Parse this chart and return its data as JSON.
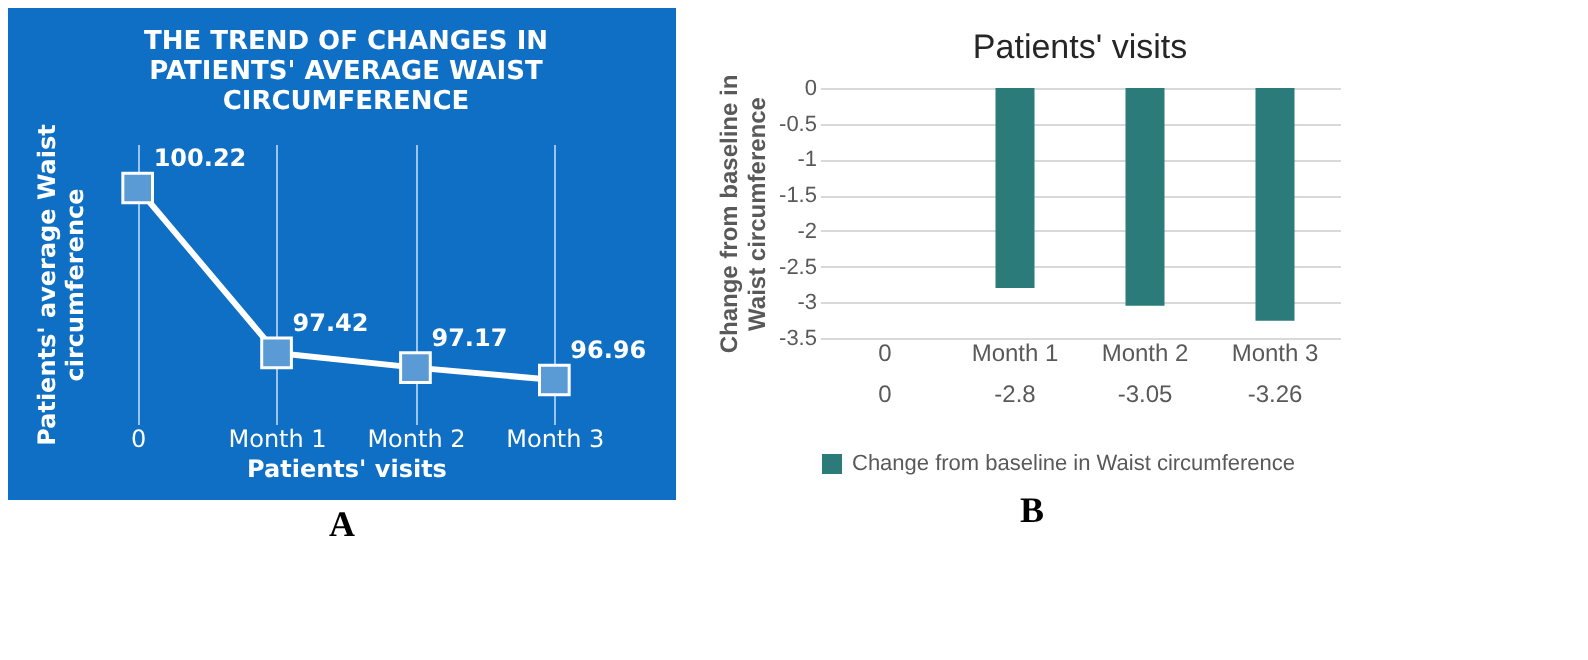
{
  "chart_data": [
    {
      "type": "line",
      "title": "THE TREND OF CHANGES IN PATIENTS' AVERAGE WAIST CIRCUMFERENCE",
      "xlabel": "Patients' visits",
      "ylabel": "Patients' average Waist circumference",
      "categories": [
        "0",
        "Month 1",
        "Month 2",
        "Month 3"
      ],
      "values": [
        100.22,
        97.42,
        97.17,
        96.96
      ],
      "color": "#ffffff",
      "marker": "square",
      "data_labels": true,
      "grid": "x",
      "tick_labels": "x",
      "annotations": [
        "A"
      ]
    },
    {
      "type": "bar",
      "title": "Patients' visits",
      "ylabel": "Change from baseline in Waist circumference",
      "categories": [
        "0",
        "Month 1",
        "Month 2",
        "Month 3"
      ],
      "series": [
        {
          "name": "Change from baseline in Waist circumference",
          "color": "#2a7b79",
          "values": [
            0,
            -2.8,
            -3.05,
            -3.26
          ]
        }
      ],
      "ylim": [
        -3.5,
        0
      ],
      "yticks": [
        0,
        -0.5,
        -1,
        -1.5,
        -2,
        -2.5,
        -3,
        -3.5
      ],
      "grid": "y",
      "data_labels": true,
      "legend": "bottom",
      "annotations": [
        "B"
      ]
    }
  ]
}
